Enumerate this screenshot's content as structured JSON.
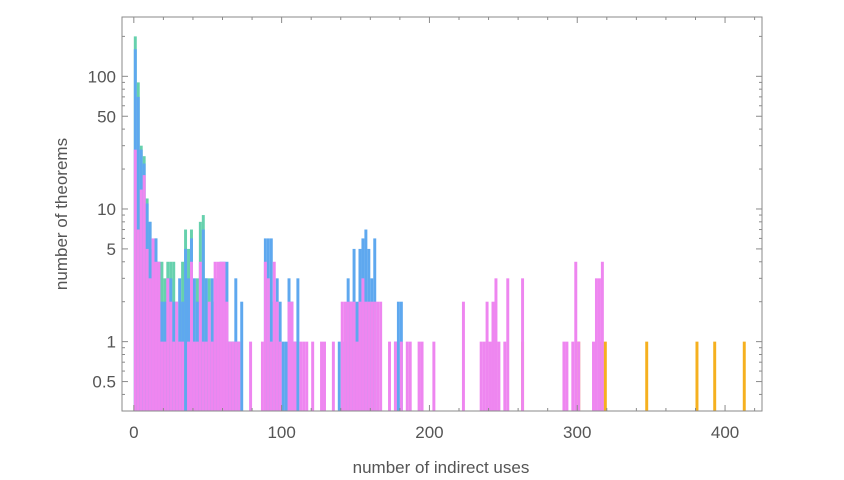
{
  "chart_data": {
    "type": "bar",
    "title": "",
    "xlabel": "number of indirect uses",
    "ylabel": "number of theorems",
    "xlim": [
      -8,
      425
    ],
    "ylim": [
      0.3,
      280
    ],
    "yscale": "log",
    "bin_width": 2,
    "x_ticks": [
      0,
      100,
      200,
      300,
      400
    ],
    "x_tick_labels": [
      "0",
      "100",
      "200",
      "300",
      "400"
    ],
    "y_ticks": [
      0.5,
      1,
      5,
      10,
      50,
      100
    ],
    "y_tick_labels": [
      "0.5",
      "1",
      "5",
      "10",
      "50",
      "100"
    ],
    "grid": false,
    "legend": "none",
    "series": [
      {
        "color": "#f5b01f",
        "bars": [
          [
            262,
            1
          ],
          [
            300,
            1
          ],
          [
            314,
            1
          ],
          [
            316,
            1
          ],
          [
            318,
            1
          ],
          [
            346,
            1
          ],
          [
            380,
            1
          ],
          [
            392,
            1
          ],
          [
            412,
            1
          ]
        ]
      },
      {
        "color": "#66d1ad",
        "bars": [
          [
            0,
            200
          ],
          [
            2,
            90
          ],
          [
            4,
            30
          ],
          [
            6,
            25
          ],
          [
            8,
            12
          ],
          [
            10,
            8
          ],
          [
            14,
            6
          ],
          [
            16,
            3
          ],
          [
            18,
            4
          ],
          [
            20,
            3
          ],
          [
            22,
            4
          ],
          [
            24,
            4
          ],
          [
            26,
            4
          ],
          [
            28,
            2
          ],
          [
            32,
            4
          ],
          [
            34,
            7
          ],
          [
            36,
            5
          ],
          [
            38,
            7
          ],
          [
            42,
            3
          ],
          [
            44,
            8
          ],
          [
            46,
            9
          ],
          [
            48,
            3
          ],
          [
            50,
            3
          ],
          [
            54,
            1
          ],
          [
            56,
            1
          ],
          [
            62,
            1
          ],
          [
            64,
            1
          ],
          [
            66,
            1
          ]
        ]
      },
      {
        "color": "#5ea8ef",
        "bars": [
          [
            0,
            160
          ],
          [
            2,
            70
          ],
          [
            4,
            28
          ],
          [
            6,
            22
          ],
          [
            8,
            11
          ],
          [
            10,
            8
          ],
          [
            12,
            5
          ],
          [
            14,
            6
          ],
          [
            16,
            4
          ],
          [
            18,
            2
          ],
          [
            20,
            2
          ],
          [
            22,
            3
          ],
          [
            24,
            3
          ],
          [
            26,
            2
          ],
          [
            28,
            1
          ],
          [
            30,
            3
          ],
          [
            32,
            2
          ],
          [
            34,
            5
          ],
          [
            36,
            3
          ],
          [
            38,
            6
          ],
          [
            40,
            3
          ],
          [
            42,
            2
          ],
          [
            44,
            3
          ],
          [
            46,
            7
          ],
          [
            48,
            3
          ],
          [
            50,
            1
          ],
          [
            52,
            3
          ],
          [
            54,
            2
          ],
          [
            56,
            3
          ],
          [
            58,
            4
          ],
          [
            60,
            4
          ],
          [
            62,
            4
          ],
          [
            64,
            1
          ],
          [
            66,
            1
          ],
          [
            68,
            3
          ],
          [
            70,
            1
          ],
          [
            72,
            2
          ],
          [
            88,
            6
          ],
          [
            90,
            6
          ],
          [
            92,
            6
          ],
          [
            94,
            2
          ],
          [
            96,
            3
          ],
          [
            98,
            2
          ],
          [
            100,
            1
          ],
          [
            102,
            1
          ],
          [
            104,
            3
          ],
          [
            106,
            2
          ],
          [
            108,
            1
          ],
          [
            110,
            3
          ],
          [
            138,
            1
          ],
          [
            142,
            1
          ],
          [
            144,
            3
          ],
          [
            146,
            2
          ],
          [
            148,
            5
          ],
          [
            150,
            2
          ],
          [
            152,
            5
          ],
          [
            154,
            6
          ],
          [
            156,
            7
          ],
          [
            158,
            5
          ],
          [
            160,
            3
          ],
          [
            162,
            6
          ],
          [
            176,
            1
          ],
          [
            178,
            2
          ],
          [
            180,
            2
          ]
        ]
      },
      {
        "color": "#ee86f0",
        "bars": [
          [
            0,
            28
          ],
          [
            2,
            7
          ],
          [
            4,
            14
          ],
          [
            6,
            18
          ],
          [
            8,
            5
          ],
          [
            10,
            3
          ],
          [
            12,
            6
          ],
          [
            14,
            4
          ],
          [
            16,
            4
          ],
          [
            18,
            1
          ],
          [
            20,
            1
          ],
          [
            22,
            3
          ],
          [
            24,
            2
          ],
          [
            26,
            1
          ],
          [
            28,
            2
          ],
          [
            30,
            1
          ],
          [
            32,
            1
          ],
          [
            36,
            1
          ],
          [
            38,
            4
          ],
          [
            40,
            1
          ],
          [
            42,
            1
          ],
          [
            44,
            4
          ],
          [
            46,
            1
          ],
          [
            48,
            1
          ],
          [
            50,
            2
          ],
          [
            52,
            1
          ],
          [
            54,
            4
          ],
          [
            56,
            4
          ],
          [
            58,
            4
          ],
          [
            60,
            4
          ],
          [
            62,
            2
          ],
          [
            64,
            1
          ],
          [
            66,
            1
          ],
          [
            68,
            1
          ],
          [
            70,
            1
          ],
          [
            78,
            1
          ],
          [
            86,
            1
          ],
          [
            88,
            4
          ],
          [
            90,
            3
          ],
          [
            92,
            1
          ],
          [
            94,
            4
          ],
          [
            96,
            2
          ],
          [
            98,
            1
          ],
          [
            104,
            2
          ],
          [
            106,
            2
          ],
          [
            108,
            1
          ],
          [
            112,
            1
          ],
          [
            114,
            1
          ],
          [
            116,
            1
          ],
          [
            120,
            1
          ],
          [
            126,
            1
          ],
          [
            128,
            1
          ],
          [
            134,
            1
          ],
          [
            140,
            2
          ],
          [
            142,
            2
          ],
          [
            144,
            2
          ],
          [
            146,
            2
          ],
          [
            148,
            2
          ],
          [
            150,
            1
          ],
          [
            152,
            2
          ],
          [
            154,
            3
          ],
          [
            156,
            2
          ],
          [
            158,
            2
          ],
          [
            160,
            2
          ],
          [
            162,
            2
          ],
          [
            164,
            2
          ],
          [
            166,
            2
          ],
          [
            172,
            1
          ],
          [
            176,
            1
          ],
          [
            180,
            1
          ],
          [
            184,
            1
          ],
          [
            186,
            1
          ],
          [
            192,
            1
          ],
          [
            194,
            1
          ],
          [
            202,
            1
          ],
          [
            222,
            2
          ],
          [
            234,
            1
          ],
          [
            236,
            1
          ],
          [
            238,
            2
          ],
          [
            240,
            1
          ],
          [
            242,
            2
          ],
          [
            244,
            3
          ],
          [
            246,
            1
          ],
          [
            250,
            1
          ],
          [
            252,
            3
          ],
          [
            262,
            3
          ],
          [
            290,
            1
          ],
          [
            292,
            1
          ],
          [
            296,
            1
          ],
          [
            298,
            4
          ],
          [
            300,
            1
          ],
          [
            310,
            1
          ],
          [
            312,
            3
          ],
          [
            314,
            3
          ],
          [
            316,
            4
          ]
        ]
      }
    ]
  }
}
